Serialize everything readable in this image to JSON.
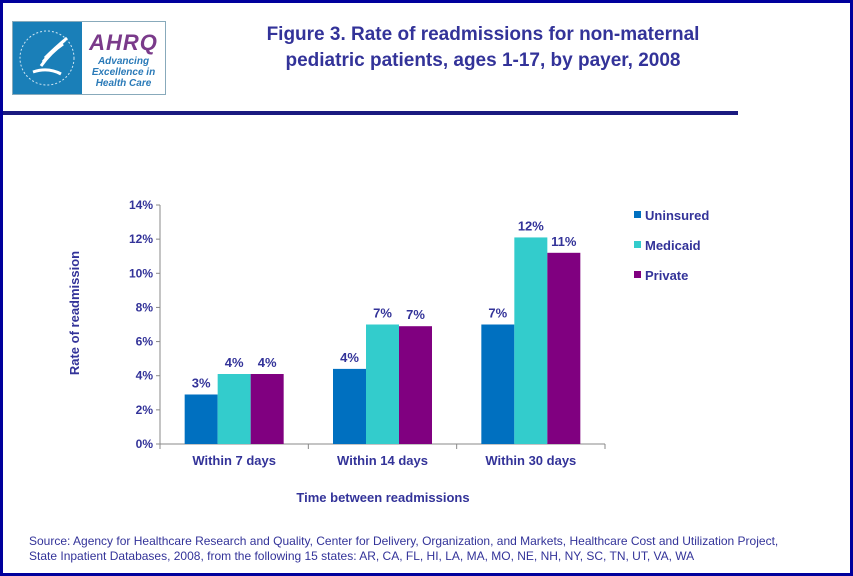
{
  "header": {
    "logo_text": "AHRQ",
    "logo_tagline": "Advancing Excellence in Health Care",
    "title_line1": "Figure 3. Rate of readmissions for non-maternal",
    "title_line2": "pediatric patients, ages 1-17, by payer, 2008"
  },
  "chart_data": {
    "type": "bar",
    "title": "Figure 3. Rate of readmissions for non-maternal pediatric patients, ages 1-17, by payer, 2008",
    "xlabel": "Time between  readmissions",
    "ylabel": "Rate of readmission",
    "ylim": [
      0,
      14
    ],
    "yticks": [
      "0%",
      "2%",
      "4%",
      "6%",
      "8%",
      "10%",
      "12%",
      "14%"
    ],
    "categories": [
      "Within 7 days",
      "Within 14 days",
      "Within 30 days"
    ],
    "series": [
      {
        "name": "Uninsured",
        "color": "#0070c0",
        "values": [
          2.9,
          4.4,
          7.0
        ],
        "labels": [
          "3%",
          "4%",
          "7%"
        ]
      },
      {
        "name": "Medicaid",
        "color": "#33cccc",
        "values": [
          4.1,
          7.0,
          12.1
        ],
        "labels": [
          "4%",
          "7%",
          "12%"
        ]
      },
      {
        "name": "Private",
        "color": "#800080",
        "values": [
          4.1,
          6.9,
          11.2
        ],
        "labels": [
          "4%",
          "7%",
          "11%"
        ]
      }
    ],
    "grid": false,
    "legend_position": "right"
  },
  "footer": {
    "source_line1": "Source: Agency for Healthcare Research and Quality, Center for Delivery, Organization, and Markets, Healthcare Cost and Utilization Project,",
    "source_line2": "State Inpatient Databases, 2008, from the following 15 states: AR, CA, FL, HI, LA, MA, MO, NE, NH, NY, SC, TN, UT, VA, WA"
  }
}
